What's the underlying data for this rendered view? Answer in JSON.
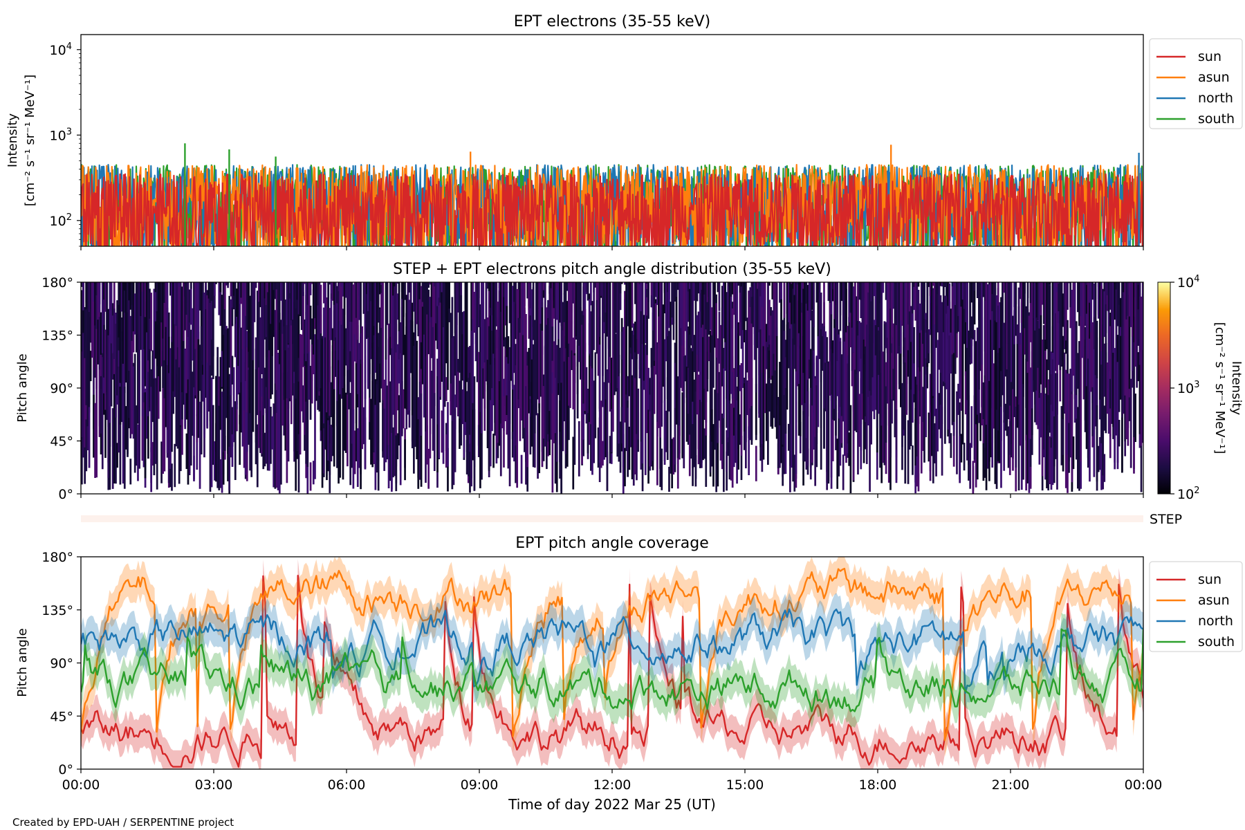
{
  "credit": "Created by EPD-UAH / SERPENTINE project",
  "colors": {
    "sun": "#d62728",
    "asun": "#ff7f0e",
    "north": "#1f77b4",
    "south": "#2ca02c",
    "step_band": "#fdf1ec"
  },
  "x_axis": {
    "label": "Time of day 2022 Mar 25 (UT)",
    "ticks": [
      "00:00",
      "03:00",
      "06:00",
      "09:00",
      "12:00",
      "15:00",
      "18:00",
      "21:00",
      "00:00"
    ],
    "range_hours": [
      0,
      24
    ]
  },
  "step_label": "STEP",
  "chart_data": [
    {
      "id": "intensity",
      "type": "line",
      "title": "EPT electrons (35-55 keV)",
      "ylabel": [
        "Intensity",
        "[cm⁻² s⁻¹ sr⁻¹ MeV⁻¹]"
      ],
      "yscale": "log",
      "ylim": [
        50,
        15000
      ],
      "yticks": [
        {
          "base": "10",
          "exp": "2"
        },
        {
          "base": "10",
          "exp": "3"
        },
        {
          "base": "10",
          "exp": "4"
        }
      ],
      "legend": "outside right, top",
      "series": [
        {
          "name": "sun",
          "color_key": "sun"
        },
        {
          "name": "asun",
          "color_key": "asun"
        },
        {
          "name": "north",
          "color_key": "north"
        },
        {
          "name": "south",
          "color_key": "south"
        }
      ],
      "typical_range": [
        50,
        450
      ],
      "notable_peaks": [
        {
          "t_hours": 2.35,
          "series": "south",
          "value": 800
        },
        {
          "t_hours": 3.35,
          "series": "south",
          "value": 680
        },
        {
          "t_hours": 4.4,
          "series": "south",
          "value": 560
        },
        {
          "t_hours": 8.8,
          "series": "asun",
          "value": 640
        },
        {
          "t_hours": 18.3,
          "series": "asun",
          "value": 770
        },
        {
          "t_hours": 23.9,
          "series": "north",
          "value": 620
        }
      ]
    },
    {
      "id": "pad",
      "type": "heatmap",
      "title": "STEP + EPT electrons pitch angle distribution (35-55 keV)",
      "ylabel": "Pitch angle",
      "ylim": [
        0,
        180
      ],
      "yticks": [
        "0°",
        "45°",
        "90°",
        "135°",
        "180°"
      ],
      "colorbar": {
        "label": "Intensity\n[cm⁻² s⁻¹ sr⁻¹ MeV⁻¹]",
        "scale": "log",
        "range": [
          100,
          10000
        ],
        "ticks": [
          {
            "base": "10",
            "exp": "2"
          },
          {
            "base": "10",
            "exp": "3"
          },
          {
            "base": "10",
            "exp": "4"
          }
        ],
        "colormap": "inferno"
      }
    },
    {
      "id": "coverage",
      "type": "line",
      "title": "EPT pitch angle coverage",
      "ylabel": "Pitch angle",
      "ylim": [
        0,
        180
      ],
      "yticks": [
        "0°",
        "45°",
        "90°",
        "135°",
        "180°"
      ],
      "legend": "outside right, top",
      "series": [
        {
          "name": "sun",
          "color_key": "sun",
          "typical_mean": 30
        },
        {
          "name": "asun",
          "color_key": "asun",
          "typical_mean": 150
        },
        {
          "name": "north",
          "color_key": "north",
          "typical_mean": 110
        },
        {
          "name": "south",
          "color_key": "south",
          "typical_mean": 70
        }
      ]
    }
  ]
}
